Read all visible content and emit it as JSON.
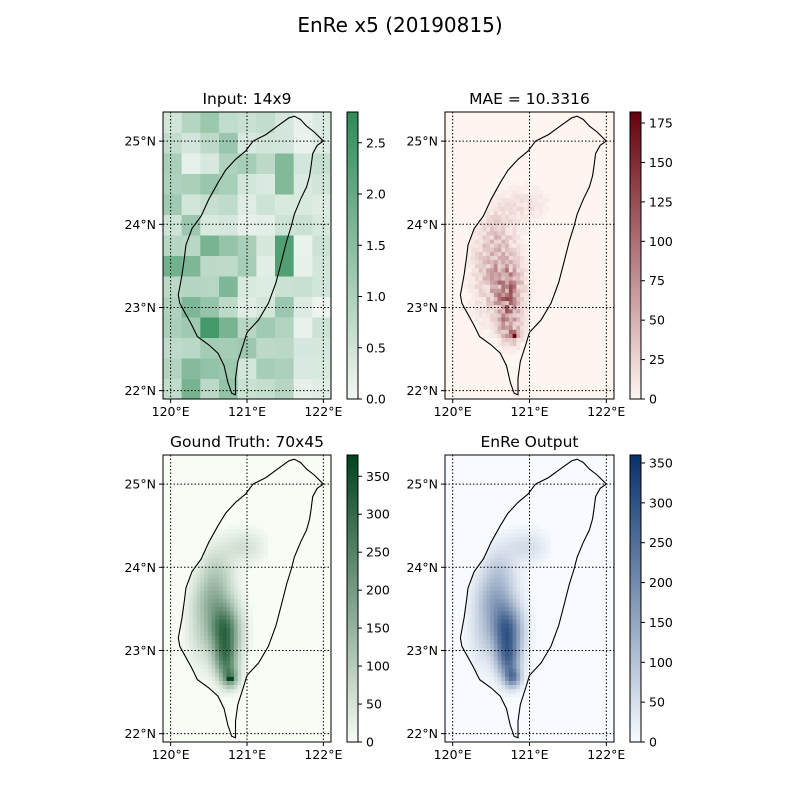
{
  "figure": {
    "title": "EnRe x5 (20190815)"
  },
  "colors": {
    "greens_light": "#f7fcf5",
    "greens_dark": "#00441b",
    "reds_light": "#fff5f0",
    "reds_dark": "#67000d",
    "blues_light": "#f7fbff",
    "blues_dark": "#08306b",
    "input_light": "#f2f7f3",
    "input_dark": "#2e8b57"
  },
  "chart_data": [
    {
      "type": "heatmap",
      "title": "Input: 14x9",
      "colormap": "Greens",
      "grid_size": [
        14,
        9
      ],
      "colorbar_range": [
        0,
        2.8
      ],
      "colorbar_ticks": [
        "0.0",
        "0.5",
        "1.0",
        "1.5",
        "2.0",
        "2.5"
      ],
      "xtick_labels": [
        "120°E",
        "121°E",
        "122°E"
      ],
      "ytick_labels": [
        "22°N",
        "23°N",
        "24°N",
        "25°N"
      ],
      "xlim": [
        119.9,
        122.1
      ],
      "ylim": [
        21.9,
        25.35
      ],
      "grid": "dotted"
    },
    {
      "type": "heatmap",
      "title": "MAE = 10.3316",
      "colormap": "Reds",
      "colorbar_range": [
        0,
        182
      ],
      "colorbar_ticks": [
        "0",
        "25",
        "50",
        "75",
        "100",
        "125",
        "150",
        "175"
      ],
      "xtick_labels": [
        "120°E",
        "121°E",
        "122°E"
      ],
      "ytick_labels": [
        "22°N",
        "23°N",
        "24°N",
        "25°N"
      ],
      "xlim": [
        119.9,
        122.1
      ],
      "ylim": [
        21.9,
        25.35
      ],
      "grid": "dotted"
    },
    {
      "type": "heatmap",
      "title": "Gound Truth: 70x45",
      "colormap": "Greens",
      "grid_size": [
        70,
        45
      ],
      "colorbar_range": [
        0,
        378
      ],
      "colorbar_ticks": [
        "0",
        "50",
        "100",
        "150",
        "200",
        "250",
        "300",
        "350"
      ],
      "xtick_labels": [
        "120°E",
        "121°E",
        "122°E"
      ],
      "ytick_labels": [
        "22°N",
        "23°N",
        "24°N",
        "25°N"
      ],
      "xlim": [
        119.9,
        122.1
      ],
      "ylim": [
        21.9,
        25.35
      ],
      "grid": "dotted"
    },
    {
      "type": "heatmap",
      "title": "EnRe Output",
      "colormap": "Blues",
      "colorbar_range": [
        0,
        360
      ],
      "colorbar_ticks": [
        "0",
        "50",
        "100",
        "150",
        "200",
        "250",
        "300",
        "350"
      ],
      "xtick_labels": [
        "120°E",
        "121°E",
        "122°E"
      ],
      "ytick_labels": [
        "22°N",
        "23°N",
        "24°N",
        "25°N"
      ],
      "xlim": [
        119.9,
        122.1
      ],
      "ylim": [
        21.9,
        25.35
      ],
      "grid": "dotted"
    }
  ]
}
